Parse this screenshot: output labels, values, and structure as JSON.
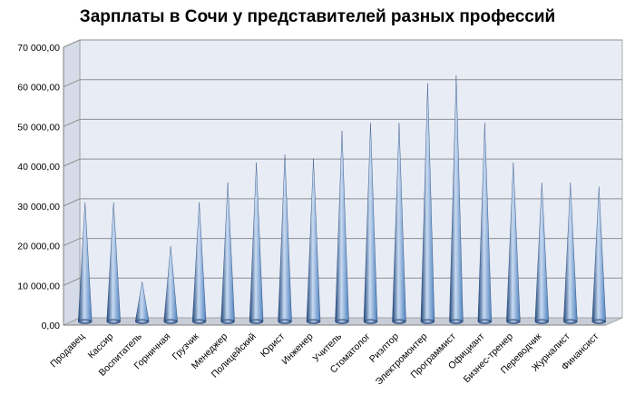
{
  "chart_data": {
    "type": "bar",
    "title": "Зарплаты в Сочи у представителей разных профессий",
    "xlabel": "",
    "ylabel": "",
    "ylim": [
      0,
      70000
    ],
    "yticks": [
      "0,00",
      "10 000,00",
      "20 000,00",
      "30 000,00",
      "40 000,00",
      "50 000,00",
      "60 000,00",
      "70 000,00"
    ],
    "ytick_values": [
      0,
      10000,
      20000,
      30000,
      40000,
      50000,
      60000,
      70000
    ],
    "grid": true,
    "bar_shape": "cone",
    "colors": {
      "bar": "#4f81bd",
      "bar_dark": "#1f4477",
      "bar_light": "#c9dbf2",
      "wall": "#e8ecf5",
      "grid": "#8f8f8f"
    },
    "categories": [
      "Продавец",
      "Кассир",
      "Воспитатель",
      "Горничная",
      "Грузчик",
      "Менеджер",
      "Полицейский",
      "Юрист",
      "Инженер",
      "Учитель",
      "Стоматолог",
      "Риэлтор",
      "Электромонтер",
      "Программист",
      "Официант",
      "Бизнес-тренер",
      "Переводчик",
      "Журналист",
      "Финансист"
    ],
    "values": [
      30000,
      30000,
      10000,
      19000,
      30000,
      35000,
      40000,
      42000,
      41000,
      48000,
      50000,
      50000,
      60000,
      62000,
      50000,
      40000,
      35000,
      35000,
      34000
    ]
  }
}
